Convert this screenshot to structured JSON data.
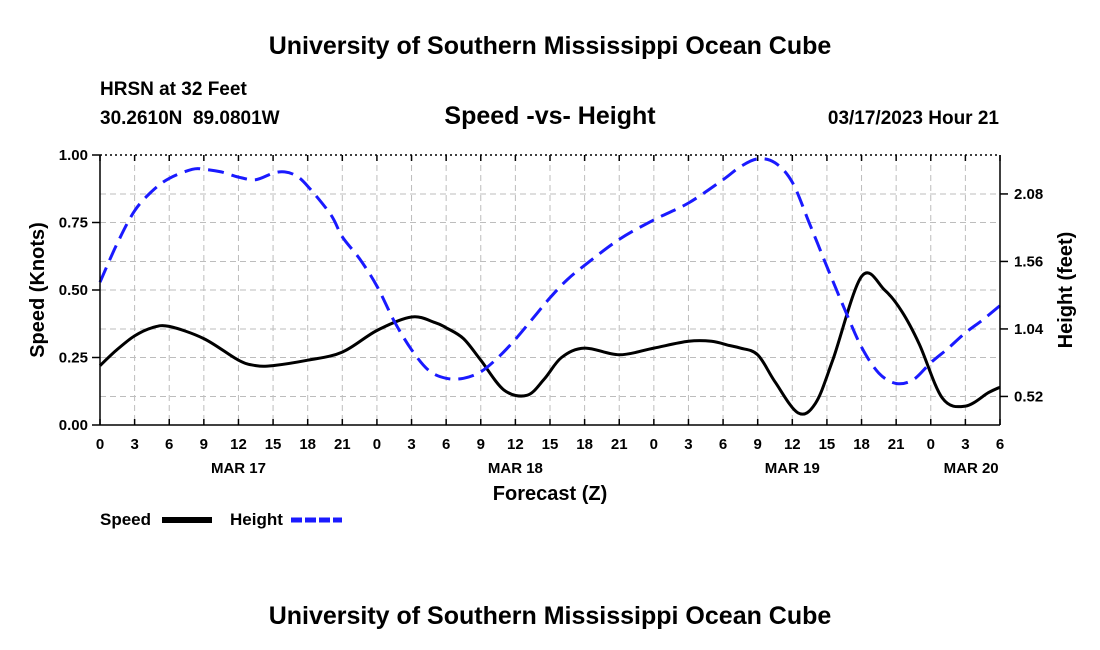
{
  "header": {
    "title_top": "University of Southern Mississippi Ocean Cube",
    "title_bottom": "University of Southern Mississippi Ocean Cube",
    "station": "HRSN at 32 Feet",
    "coords": "30.2610N  89.0801W",
    "subtitle": "Speed -vs- Height",
    "timestamp": "03/17/2023 Hour 21"
  },
  "legend": {
    "speed_label": "Speed",
    "height_label": "Height"
  },
  "colors": {
    "speed": "#000000",
    "height": "#1a1aff"
  },
  "chart_data": {
    "type": "line",
    "title": "Speed -vs- Height",
    "xlabel": "Forecast (Z)",
    "ylabel": "Speed (Knots)",
    "y2label": "Height (feet)",
    "xlim": [
      0,
      78
    ],
    "ylim": [
      0,
      1.0
    ],
    "y2lim": [
      0.3,
      2.38
    ],
    "x_ticks": [
      0,
      3,
      6,
      9,
      12,
      15,
      18,
      21,
      24,
      27,
      30,
      33,
      36,
      39,
      42,
      45,
      48,
      51,
      54,
      57,
      60,
      63,
      66,
      69,
      72,
      75,
      78
    ],
    "x_tick_labels": [
      "0",
      "3",
      "6",
      "9",
      "12",
      "15",
      "18",
      "21",
      "0",
      "3",
      "6",
      "9",
      "12",
      "15",
      "18",
      "21",
      "0",
      "3",
      "6",
      "9",
      "12",
      "15",
      "18",
      "21",
      "0",
      "3",
      "6"
    ],
    "date_labels": [
      {
        "x": 12,
        "label": "MAR 17"
      },
      {
        "x": 36,
        "label": "MAR 18"
      },
      {
        "x": 60,
        "label": "MAR 19"
      },
      {
        "x": 75.5,
        "label": "MAR 20"
      }
    ],
    "y_ticks": [
      0,
      0.25,
      0.5,
      0.75,
      1.0
    ],
    "y_tick_labels": [
      "0.00",
      "0.25",
      "0.50",
      "0.75",
      "1.00"
    ],
    "y2_ticks": [
      0.52,
      1.04,
      1.56,
      2.08
    ],
    "y2_tick_labels": [
      "0.52",
      "1.04",
      "1.56",
      "2.08"
    ],
    "series": [
      {
        "name": "Speed",
        "axis": "left",
        "style": "solid",
        "x": [
          0,
          1.5,
          3,
          4.5,
          6,
          9,
          12,
          13.5,
          15,
          18,
          21,
          24,
          27,
          29,
          30,
          31.5,
          33,
          35,
          37,
          38.5,
          40,
          42,
          45,
          48,
          51,
          53,
          54.5,
          55.5,
          57,
          58.5,
          60.5,
          62,
          63.5,
          66,
          68,
          69.5,
          71,
          73,
          75,
          77,
          78
        ],
        "values": [
          0.22,
          0.28,
          0.33,
          0.36,
          0.365,
          0.32,
          0.24,
          0.22,
          0.22,
          0.24,
          0.27,
          0.35,
          0.4,
          0.38,
          0.36,
          0.32,
          0.24,
          0.13,
          0.11,
          0.17,
          0.25,
          0.285,
          0.26,
          0.285,
          0.31,
          0.31,
          0.295,
          0.285,
          0.26,
          0.16,
          0.045,
          0.08,
          0.24,
          0.55,
          0.5,
          0.42,
          0.3,
          0.1,
          0.07,
          0.12,
          0.14
        ]
      },
      {
        "name": "Height",
        "axis": "right",
        "style": "dashed",
        "x": [
          0,
          1.5,
          3,
          4.5,
          6,
          8,
          9,
          10.5,
          12,
          13.5,
          15,
          16,
          17,
          18,
          20,
          21,
          22.5,
          24,
          25.5,
          27,
          28.5,
          30,
          31.5,
          33,
          34.5,
          36,
          37.5,
          39,
          40.5,
          42,
          45,
          48,
          51,
          54,
          55.5,
          57,
          58.5,
          60,
          61.5,
          63,
          64.5,
          66,
          67.5,
          69,
          70.5,
          72,
          73.5,
          75,
          76.5,
          78
        ],
        "values": [
          1.4,
          1.7,
          1.95,
          2.1,
          2.2,
          2.27,
          2.27,
          2.25,
          2.21,
          2.19,
          2.24,
          2.25,
          2.22,
          2.14,
          1.92,
          1.75,
          1.58,
          1.37,
          1.1,
          0.88,
          0.72,
          0.66,
          0.66,
          0.71,
          0.82,
          0.96,
          1.12,
          1.28,
          1.42,
          1.53,
          1.73,
          1.88,
          2.01,
          2.19,
          2.29,
          2.35,
          2.32,
          2.17,
          1.85,
          1.52,
          1.2,
          0.9,
          0.7,
          0.62,
          0.65,
          0.78,
          0.89,
          1.01,
          1.11,
          1.22
        ]
      }
    ]
  }
}
